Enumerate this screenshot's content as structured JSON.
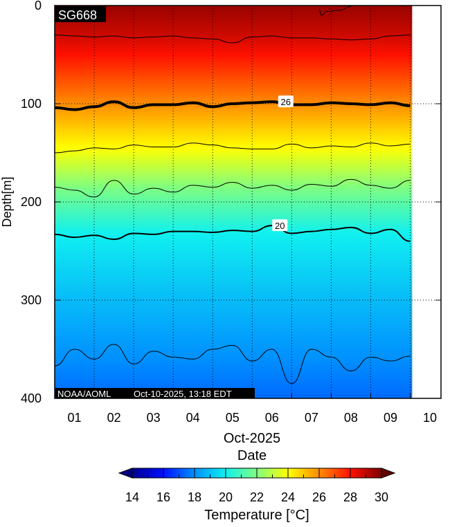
{
  "chart_data": {
    "type": "heatmap",
    "title": "SG668",
    "credit": "NOAA/AOML",
    "timestamp": "Oct-10-2025, 13:18 EDT",
    "xlabel": "Date",
    "xsublabel": "Oct-2025",
    "ylabel": "Depth[m]",
    "colorbar_label": "Temperature [°C]",
    "x_unit": "days since Oct-01 00:00",
    "xlim": [
      0,
      9.78
    ],
    "data_end": 9.05,
    "ylim": [
      0,
      400
    ],
    "y_ticks": [
      0,
      100,
      200,
      300,
      400
    ],
    "x_ticks": [
      {
        "t": 0.5,
        "label": "01"
      },
      {
        "t": 1.5,
        "label": "02"
      },
      {
        "t": 2.5,
        "label": "03"
      },
      {
        "t": 3.5,
        "label": "04"
      },
      {
        "t": 4.5,
        "label": "05"
      },
      {
        "t": 5.5,
        "label": "06"
      },
      {
        "t": 6.5,
        "label": "07"
      },
      {
        "t": 7.5,
        "label": "08"
      },
      {
        "t": 8.5,
        "label": "09"
      },
      {
        "t": 9.5,
        "label": "10"
      }
    ],
    "colorbar_ticks": [
      14,
      16,
      18,
      20,
      22,
      24,
      26,
      28,
      30
    ],
    "colormap": [
      {
        "v": 14,
        "c": "#00008f"
      },
      {
        "v": 16,
        "c": "#0010ff"
      },
      {
        "v": 18,
        "c": "#0090ff"
      },
      {
        "v": 20,
        "c": "#10f0f0"
      },
      {
        "v": 22,
        "c": "#80ff80"
      },
      {
        "v": 24,
        "c": "#ffff00"
      },
      {
        "v": 26,
        "c": "#ff8c00"
      },
      {
        "v": 28,
        "c": "#ff1000"
      },
      {
        "v": 30,
        "c": "#7f0000"
      }
    ],
    "mean_profile": [
      [
        0,
        29.6
      ],
      [
        30,
        28.8
      ],
      [
        60,
        27.6
      ],
      [
        100,
        26
      ],
      [
        145,
        24
      ],
      [
        185,
        22
      ],
      [
        232,
        20
      ],
      [
        300,
        18.9
      ],
      [
        360,
        18
      ],
      [
        400,
        17.4
      ]
    ],
    "contour_times": [
      0,
      0.5,
      1,
      1.5,
      2,
      2.5,
      3,
      3.5,
      4,
      4.5,
      5,
      5.5,
      6,
      6.5,
      7,
      7.5,
      8,
      8.5,
      9
    ],
    "contours": [
      {
        "level": 28,
        "bold": false,
        "depths": [
          30,
          31,
          32,
          31,
          33,
          32,
          31,
          33,
          34,
          38,
          32,
          31,
          33,
          33,
          34,
          35,
          34,
          31,
          30
        ]
      },
      {
        "level": 26,
        "bold": true,
        "label": "26",
        "label_t": 5.85,
        "depths": [
          104,
          106,
          103,
          98,
          104,
          101,
          101,
          99,
          103,
          100,
          99,
          98,
          101,
          101,
          99,
          100,
          101,
          99,
          102
        ]
      },
      {
        "level": 24,
        "bold": false,
        "depths": [
          150,
          148,
          145,
          146,
          142,
          144,
          144,
          140,
          142,
          145,
          146,
          146,
          141,
          145,
          143,
          144,
          140,
          143,
          141
        ]
      },
      {
        "level": 22,
        "bold": false,
        "depths": [
          185,
          188,
          195,
          178,
          192,
          186,
          190,
          183,
          185,
          180,
          186,
          183,
          188,
          182,
          184,
          177,
          183,
          186,
          178
        ]
      },
      {
        "level": 20,
        "bold": true,
        "label": "20",
        "label_t": 5.7,
        "depths": [
          233,
          236,
          234,
          238,
          232,
          233,
          230,
          230,
          231,
          229,
          230,
          224,
          232,
          230,
          228,
          226,
          232,
          228,
          240
        ]
      },
      {
        "level": 18,
        "bold": false,
        "depths": [
          367,
          350,
          360,
          345,
          365,
          352,
          358,
          360,
          350,
          346,
          362,
          350,
          385,
          350,
          358,
          372,
          358,
          362,
          357
        ]
      },
      {
        "level": 29,
        "bold": false,
        "times": [
          6.7,
          6.75,
          6.9,
          7.2,
          7.5
        ],
        "depths": [
          4,
          10,
          6,
          5,
          1
        ]
      }
    ]
  }
}
